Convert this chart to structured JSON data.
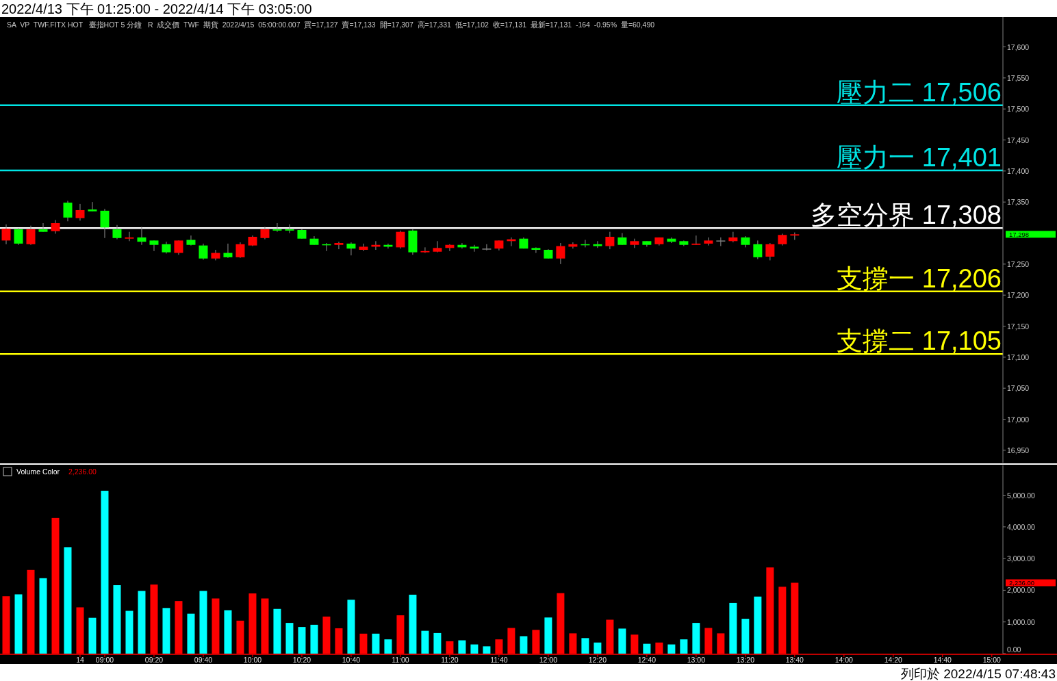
{
  "chart_data": [
    {
      "type": "candlestick",
      "title": "2022/4/13 下午 01:25:00 - 2022/4/14 下午 03:05:00",
      "subtitle": "SA  VP  TWF.FITX HOT   臺指HOT 5 分鐘   R  成交價  TWF  期貨  2022/4/15  05:00:00.007  買=17,127  賣=17,133  開=17,307  高=17,331  低=17,102  收=17,131  最新=17,131  -164  -0.95%  量=60,490",
      "categories": [
        null,
        null,
        null,
        null,
        null,
        null,
        null,
        null,
        null,
        null,
        null,
        null,
        null,
        null,
        null,
        null,
        null,
        null,
        null,
        null,
        null,
        null,
        null,
        null,
        null,
        null,
        null,
        null,
        null,
        null,
        null,
        null,
        null,
        null,
        null,
        null,
        null,
        null,
        null,
        null,
        null,
        null,
        null,
        null,
        null,
        null,
        null,
        null,
        null,
        null,
        null,
        null,
        null,
        null,
        null,
        null,
        null,
        null,
        null,
        null,
        null,
        null,
        null,
        null,
        null,
        null,
        null,
        null,
        null,
        null,
        null,
        null,
        null,
        null,
        null,
        null,
        null,
        null,
        null,
        null,
        null
      ],
      "ohlc": [
        [
          17288,
          17314,
          17282,
          17307
        ],
        [
          17306,
          17308,
          17281,
          17283
        ],
        [
          17282,
          17312,
          17281,
          17306
        ],
        [
          17306,
          17316,
          17302,
          17302
        ],
        [
          17303,
          17321,
          17299,
          17316
        ],
        [
          17349,
          17352,
          17319,
          17325
        ],
        [
          17324,
          17347,
          17320,
          17337
        ],
        [
          17338,
          17350,
          17335,
          17335
        ],
        [
          17336,
          17339,
          17292,
          17309
        ],
        [
          17306,
          17313,
          17290,
          17292
        ],
        [
          17291,
          17302,
          17287,
          17293
        ],
        [
          17293,
          17310,
          17281,
          17286
        ],
        [
          17288,
          17288,
          17271,
          17281
        ],
        [
          17282,
          17286,
          17267,
          17269
        ],
        [
          17268,
          17288,
          17265,
          17288
        ],
        [
          17289,
          17296,
          17280,
          17281
        ],
        [
          17280,
          17283,
          17257,
          17259
        ],
        [
          17259,
          17273,
          17256,
          17268
        ],
        [
          17268,
          17283,
          17260,
          17261
        ],
        [
          17261,
          17285,
          17260,
          17282
        ],
        [
          17280,
          17296,
          17279,
          17294
        ],
        [
          17292,
          17310,
          17290,
          17306
        ],
        [
          17306,
          17316,
          17302,
          17304
        ],
        [
          17306,
          17314,
          17300,
          17304
        ],
        [
          17305,
          17307,
          17291,
          17291
        ],
        [
          17291,
          17295,
          17281,
          17281
        ],
        [
          17282,
          17284,
          17271,
          17281
        ],
        [
          17281,
          17286,
          17274,
          17284
        ],
        [
          17283,
          17285,
          17264,
          17275
        ],
        [
          17273,
          17283,
          17271,
          17278
        ],
        [
          17278,
          17287,
          17273,
          17281
        ],
        [
          17281,
          17283,
          17275,
          17278
        ],
        [
          17277,
          17304,
          17275,
          17302
        ],
        [
          17304,
          17306,
          17265,
          17269
        ],
        [
          17269,
          17277,
          17268,
          17271
        ],
        [
          17270,
          17287,
          17269,
          17276
        ],
        [
          17276,
          17282,
          17271,
          17281
        ],
        [
          17281,
          17284,
          17275,
          17277
        ],
        [
          17278,
          17281,
          17270,
          17275
        ],
        [
          17275,
          17282,
          17272,
          17275
        ],
        [
          17275,
          17288,
          17272,
          17288
        ],
        [
          17287,
          17293,
          17279,
          17290
        ],
        [
          17291,
          17293,
          17275,
          17275
        ],
        [
          17276,
          17277,
          17268,
          17273
        ],
        [
          17273,
          17274,
          17259,
          17259
        ],
        [
          17259,
          17284,
          17250,
          17279
        ],
        [
          17278,
          17285,
          17275,
          17282
        ],
        [
          17282,
          17289,
          17277,
          17281
        ],
        [
          17282,
          17287,
          17276,
          17279
        ],
        [
          17279,
          17302,
          17274,
          17294
        ],
        [
          17293,
          17300,
          17281,
          17281
        ],
        [
          17281,
          17291,
          17276,
          17287
        ],
        [
          17287,
          17287,
          17278,
          17281
        ],
        [
          17282,
          17293,
          17280,
          17293
        ],
        [
          17291,
          17293,
          17284,
          17286
        ],
        [
          17287,
          17288,
          17279,
          17281
        ],
        [
          17281,
          17296,
          17281,
          17283
        ],
        [
          17283,
          17293,
          17280,
          17288
        ],
        [
          17288,
          17293,
          17279,
          17288
        ],
        [
          17287,
          17302,
          17285,
          17293
        ],
        [
          17293,
          17295,
          17277,
          17281
        ],
        [
          17282,
          17288,
          17258,
          17261
        ],
        [
          17262,
          17284,
          17256,
          17282
        ],
        [
          17282,
          17299,
          17280,
          17297
        ],
        [
          17296,
          17301,
          17289,
          17298
        ],
        null,
        null,
        null,
        null,
        null,
        null,
        null,
        null,
        null,
        null,
        null,
        null,
        null,
        null,
        null,
        null
      ],
      "colors": [
        "#ff0000",
        "#00ff00",
        "#ff0000",
        "#00ff00",
        "#ff0000",
        "#00ff00",
        "#ff0000",
        "#00ff00",
        "#00ff00",
        "#00ff00",
        "#ff0000",
        "#00ff00",
        "#00ff00",
        "#00ff00",
        "#ff0000",
        "#00ff00",
        "#00ff00",
        "#ff0000",
        "#00ff00",
        "#ff0000",
        "#ff0000",
        "#ff0000",
        "#00ff00",
        "#00ff00",
        "#00ff00",
        "#00ff00",
        "#00ff00",
        "#ff0000",
        "#00ff00",
        "#ff0000",
        "#ff0000",
        "#00ff00",
        "#ff0000",
        "#00ff00",
        "#ff0000",
        "#ff0000",
        "#ff0000",
        "#00ff00",
        "#00ff00",
        "#808080",
        "#ff0000",
        "#ff0000",
        "#00ff00",
        "#00ff00",
        "#00ff00",
        "#ff0000",
        "#ff0000",
        "#00ff00",
        "#00ff00",
        "#ff0000",
        "#00ff00",
        "#ff0000",
        "#00ff00",
        "#ff0000",
        "#00ff00",
        "#00ff00",
        "#ff0000",
        "#ff0000",
        "#808080",
        "#ff0000",
        "#00ff00",
        "#00ff00",
        "#ff0000",
        "#ff0000",
        "#ff0000",
        null,
        null,
        null,
        null,
        null,
        null,
        null,
        null,
        null,
        null,
        null,
        null,
        null,
        null,
        null,
        null
      ],
      "ylim": [
        16930,
        17648
      ],
      "yticks": [
        {
          "value": 16950,
          "label": "16,950"
        },
        {
          "value": 17000,
          "label": "17,000"
        },
        {
          "value": 17050,
          "label": "17,050"
        },
        {
          "value": 17100,
          "label": "17,100"
        },
        {
          "value": 17150,
          "label": "17,150"
        },
        {
          "value": 17200,
          "label": "17,200"
        },
        {
          "value": 17250,
          "label": "17,250"
        },
        {
          "value": 17350,
          "label": "17,350"
        },
        {
          "value": 17400,
          "label": "17,400"
        },
        {
          "value": 17450,
          "label": "17,450"
        },
        {
          "value": 17500,
          "label": "17,500"
        },
        {
          "value": 17550,
          "label": "17,550"
        },
        {
          "value": 17600,
          "label": "17,600"
        }
      ],
      "ref_lines": [
        {
          "axis": "y",
          "value": 17506,
          "label": "壓力二 17,506",
          "color": "#00e5e5"
        },
        {
          "axis": "y",
          "value": 17401,
          "label": "壓力一 17,401",
          "color": "#00e5e5"
        },
        {
          "axis": "y",
          "value": 17308,
          "label": "多空分界 17,308",
          "color": "#ffffff"
        },
        {
          "axis": "y",
          "value": 17206,
          "label": "支撐一 17,206",
          "color": "#ffff00"
        },
        {
          "axis": "y",
          "value": 17105,
          "label": "支撐二 17,105",
          "color": "#ffff00"
        }
      ],
      "annotations": [
        "17,298",
        "列印於 2022/4/15 07:48:43"
      ],
      "tick_labels": "y"
    },
    {
      "type": "bar",
      "title": "Volume Color",
      "categories": [
        null,
        null,
        null,
        null,
        null,
        null,
        "14",
        null,
        "09:00",
        null,
        null,
        null,
        "09:20",
        null,
        null,
        null,
        "09:40",
        null,
        null,
        null,
        "10:00",
        null,
        null,
        null,
        "10:20",
        null,
        null,
        null,
        "10:40",
        null,
        null,
        null,
        "11:00",
        null,
        null,
        null,
        "11:20",
        null,
        null,
        null,
        "11:40",
        null,
        null,
        null,
        "12:00",
        null,
        null,
        null,
        "12:20",
        null,
        null,
        null,
        "12:40",
        null,
        null,
        null,
        "13:00",
        null,
        null,
        null,
        "13:20",
        null,
        null,
        null,
        "13:40",
        null,
        null,
        null,
        "14:00",
        null,
        null,
        null,
        "14:20",
        null,
        null,
        null,
        "14:40",
        null,
        null,
        null,
        "15:00"
      ],
      "values": [
        1810,
        1870,
        2640,
        2380,
        4280,
        3360,
        1460,
        1130,
        5140,
        2160,
        1350,
        1980,
        2180,
        1440,
        1660,
        1260,
        1980,
        1740,
        1370,
        1040,
        1900,
        1740,
        1410,
        970,
        840,
        910,
        1170,
        800,
        1700,
        630,
        630,
        450,
        1210,
        1860,
        720,
        650,
        390,
        420,
        290,
        230,
        450,
        810,
        550,
        750,
        1140,
        1910,
        640,
        490,
        350,
        1070,
        790,
        600,
        310,
        350,
        290,
        450,
        970,
        810,
        640,
        1600,
        1100,
        1800,
        2720,
        2110,
        2236,
        null,
        null,
        null,
        null,
        null,
        null,
        null,
        null,
        null,
        null,
        null,
        null,
        null,
        null,
        null,
        null
      ],
      "colors": [
        "#ff0000",
        "#00ffff",
        "#ff0000",
        "#00ffff",
        "#ff0000",
        "#00ffff",
        "#ff0000",
        "#00ffff",
        "#00ffff",
        "#00ffff",
        "#00ffff",
        "#00ffff",
        "#ff0000",
        "#00ffff",
        "#ff0000",
        "#00ffff",
        "#00ffff",
        "#ff0000",
        "#00ffff",
        "#ff0000",
        "#ff0000",
        "#ff0000",
        "#00ffff",
        "#00ffff",
        "#00ffff",
        "#00ffff",
        "#ff0000",
        "#ff0000",
        "#00ffff",
        "#ff0000",
        "#00ffff",
        "#00ffff",
        "#ff0000",
        "#00ffff",
        "#00ffff",
        "#00ffff",
        "#ff0000",
        "#00ffff",
        "#00ffff",
        "#00ffff",
        "#ff0000",
        "#ff0000",
        "#00ffff",
        "#ff0000",
        "#00ffff",
        "#ff0000",
        "#ff0000",
        "#00ffff",
        "#00ffff",
        "#ff0000",
        "#00ffff",
        "#ff0000",
        "#00ffff",
        "#ff0000",
        "#00ffff",
        "#00ffff",
        "#00ffff",
        "#ff0000",
        "#ff0000",
        "#00ffff",
        "#00ffff",
        "#00ffff",
        "#ff0000",
        "#ff0000",
        "#ff0000",
        null,
        null,
        null,
        null,
        null,
        null,
        null,
        null,
        null,
        null,
        null,
        null,
        null,
        null,
        null,
        null
      ],
      "ylim": [
        0,
        5940
      ],
      "yticks": [
        {
          "value": 0,
          "label": "0.00"
        },
        {
          "value": 1000,
          "label": "1,000.00"
        },
        {
          "value": 2000,
          "label": "2,000.00"
        },
        {
          "value": 3000,
          "label": "3,000.00"
        },
        {
          "value": 4000,
          "label": "4,000.00"
        },
        {
          "value": 5000,
          "label": "5,000.00"
        }
      ],
      "annotations": [
        "2,236.00",
        "2,236.00"
      ]
    }
  ]
}
